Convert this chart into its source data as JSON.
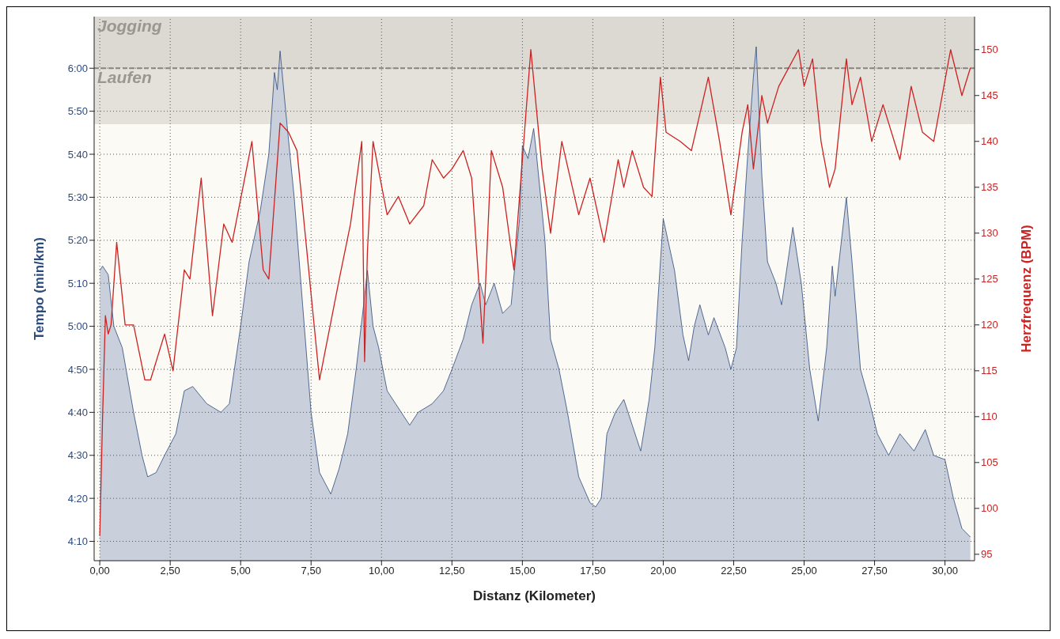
{
  "chart_data": {
    "type": "area",
    "xlabel": "Distanz (Kilometer)",
    "ylabel": "Tempo (min/km)",
    "y2label": "Herzfrequenz (BPM)",
    "xlim": [
      -0.2,
      31.05
    ],
    "xticks": [
      {
        "value": 0,
        "label": "0,00"
      },
      {
        "value": 2.5,
        "label": "2,50"
      },
      {
        "value": 5,
        "label": "5,00"
      },
      {
        "value": 7.5,
        "label": "7,50"
      },
      {
        "value": 10,
        "label": "10,00"
      },
      {
        "value": 12.5,
        "label": "12,50"
      },
      {
        "value": 15,
        "label": "15,00"
      },
      {
        "value": 17.5,
        "label": "17,50"
      },
      {
        "value": 20,
        "label": "20,00"
      },
      {
        "value": 22.5,
        "label": "22,50"
      },
      {
        "value": 25,
        "label": "25,00"
      },
      {
        "value": 27.5,
        "label": "27,50"
      },
      {
        "value": 30,
        "label": "30,00"
      }
    ],
    "ylim": [
      245.5,
      372
    ],
    "yticks": [
      {
        "value": 250,
        "label": "4:10"
      },
      {
        "value": 260,
        "label": "4:20"
      },
      {
        "value": 270,
        "label": "4:30"
      },
      {
        "value": 280,
        "label": "4:40"
      },
      {
        "value": 290,
        "label": "4:50"
      },
      {
        "value": 300,
        "label": "5:00"
      },
      {
        "value": 310,
        "label": "5:10"
      },
      {
        "value": 320,
        "label": "5:20"
      },
      {
        "value": 330,
        "label": "5:30"
      },
      {
        "value": 340,
        "label": "5:40"
      },
      {
        "value": 350,
        "label": "5:50"
      },
      {
        "value": 360,
        "label": "6:00"
      }
    ],
    "y2lim": [
      94.3,
      153.6
    ],
    "y2ticks": [
      95,
      100,
      105,
      110,
      115,
      120,
      125,
      130,
      135,
      140,
      145,
      150
    ],
    "grid": true,
    "legend": false,
    "bands": [
      {
        "axis": "y",
        "from": 360,
        "to": 372,
        "label": "Jogging",
        "color": "#dcd9d2"
      },
      {
        "axis": "y",
        "from": 347,
        "to": 360,
        "label": "Laufen",
        "color": "#e4e1da"
      }
    ],
    "ref_lines": [
      {
        "axis": "y",
        "value": 360,
        "label": null,
        "color": "#8a8480",
        "line_style": "dashed"
      }
    ],
    "series": [
      {
        "color": "#2c4a7c",
        "x": [
          0.0,
          0.1,
          0.3,
          0.5,
          0.8,
          1.2,
          1.5,
          1.7,
          2.0,
          2.3,
          2.7,
          3.0,
          3.3,
          3.8,
          4.3,
          4.6,
          5.0,
          5.3,
          5.7,
          6.0,
          6.2,
          6.3,
          6.4,
          6.6,
          6.9,
          7.2,
          7.5,
          7.8,
          8.2,
          8.5,
          8.8,
          9.1,
          9.4,
          9.5,
          9.7,
          9.9,
          10.2,
          10.5,
          11.0,
          11.3,
          11.8,
          12.2,
          12.5,
          12.9,
          13.2,
          13.5,
          13.7,
          14.0,
          14.3,
          14.6,
          14.9,
          15.0,
          15.2,
          15.4,
          15.5,
          15.8,
          16.0,
          16.3,
          16.6,
          17.0,
          17.4,
          17.6,
          17.8,
          18.0,
          18.3,
          18.6,
          18.9,
          19.2,
          19.5,
          19.7,
          19.9,
          20.0,
          20.4,
          20.7,
          20.9,
          21.1,
          21.3,
          21.6,
          21.8,
          22.2,
          22.4,
          22.6,
          22.8,
          23.0,
          23.2,
          23.3,
          23.5,
          23.7,
          24.0,
          24.2,
          24.6,
          24.9,
          25.2,
          25.5,
          25.8,
          26.0,
          26.1,
          26.5,
          26.7,
          27.0,
          27.3,
          27.6,
          28.0,
          28.4,
          28.9,
          29.3,
          29.6,
          30.0,
          30.3,
          30.6,
          30.9
        ],
        "values": [
          313,
          314,
          312,
          300,
          295,
          280,
          270,
          265,
          266,
          270,
          275,
          285,
          286,
          282,
          280,
          282,
          300,
          315,
          327,
          340,
          359,
          355,
          364,
          350,
          330,
          305,
          280,
          266,
          261,
          267,
          275,
          290,
          307,
          313,
          300,
          295,
          285,
          282,
          277,
          280,
          282,
          285,
          290,
          297,
          305,
          310,
          305,
          310,
          303,
          305,
          325,
          342,
          339,
          346,
          340,
          320,
          297,
          290,
          280,
          265,
          259,
          258,
          260,
          275,
          280,
          283,
          277,
          271,
          283,
          295,
          315,
          325,
          313,
          298,
          292,
          300,
          305,
          298,
          302,
          295,
          290,
          295,
          320,
          340,
          358,
          365,
          335,
          315,
          310,
          305,
          323,
          310,
          290,
          278,
          295,
          314,
          307,
          330,
          315,
          290,
          283,
          275,
          270,
          275,
          271,
          276,
          270,
          269,
          260,
          253,
          251
        ]
      },
      {
        "type": "line",
        "axis": "y2",
        "color": "#cc2222",
        "x": [
          0.0,
          0.1,
          0.2,
          0.3,
          0.4,
          0.6,
          0.9,
          1.2,
          1.6,
          1.8,
          2.3,
          2.6,
          3.0,
          3.2,
          3.6,
          4.0,
          4.4,
          4.7,
          5.4,
          5.8,
          6.0,
          6.4,
          6.7,
          7.0,
          7.8,
          8.5,
          8.9,
          9.3,
          9.4,
          9.5,
          9.7,
          10.2,
          10.6,
          11.0,
          11.5,
          11.8,
          12.2,
          12.5,
          12.9,
          13.2,
          13.6,
          13.9,
          14.3,
          14.7,
          15.3,
          15.7,
          16.0,
          16.4,
          17.0,
          17.4,
          17.9,
          18.4,
          18.6,
          18.9,
          19.3,
          19.6,
          19.9,
          20.1,
          20.6,
          21.0,
          21.6,
          22.0,
          22.4,
          22.8,
          23.0,
          23.2,
          23.5,
          23.7,
          24.1,
          24.8,
          25.0,
          25.3,
          25.6,
          25.9,
          26.1,
          26.5,
          26.7,
          27.0,
          27.4,
          27.8,
          28.4,
          28.8,
          29.2,
          29.6,
          30.2,
          30.6,
          30.9
        ],
        "values": [
          97,
          110,
          121,
          119,
          120,
          129,
          120,
          120,
          114,
          114,
          119,
          115,
          126,
          125,
          136,
          121,
          131,
          129,
          140,
          126,
          125,
          142,
          141,
          139,
          114,
          125,
          131,
          140,
          116,
          128,
          140,
          132,
          134,
          131,
          133,
          138,
          136,
          137,
          139,
          136,
          118,
          139,
          135,
          126,
          150,
          137,
          130,
          140,
          132,
          136,
          129,
          138,
          135,
          139,
          135,
          134,
          147,
          141,
          140,
          139,
          147,
          140,
          132,
          141,
          144,
          137,
          145,
          142,
          146,
          150,
          146,
          149,
          140,
          135,
          137,
          149,
          144,
          147,
          140,
          144,
          138,
          146,
          141,
          140,
          150,
          145,
          148
        ]
      }
    ]
  }
}
